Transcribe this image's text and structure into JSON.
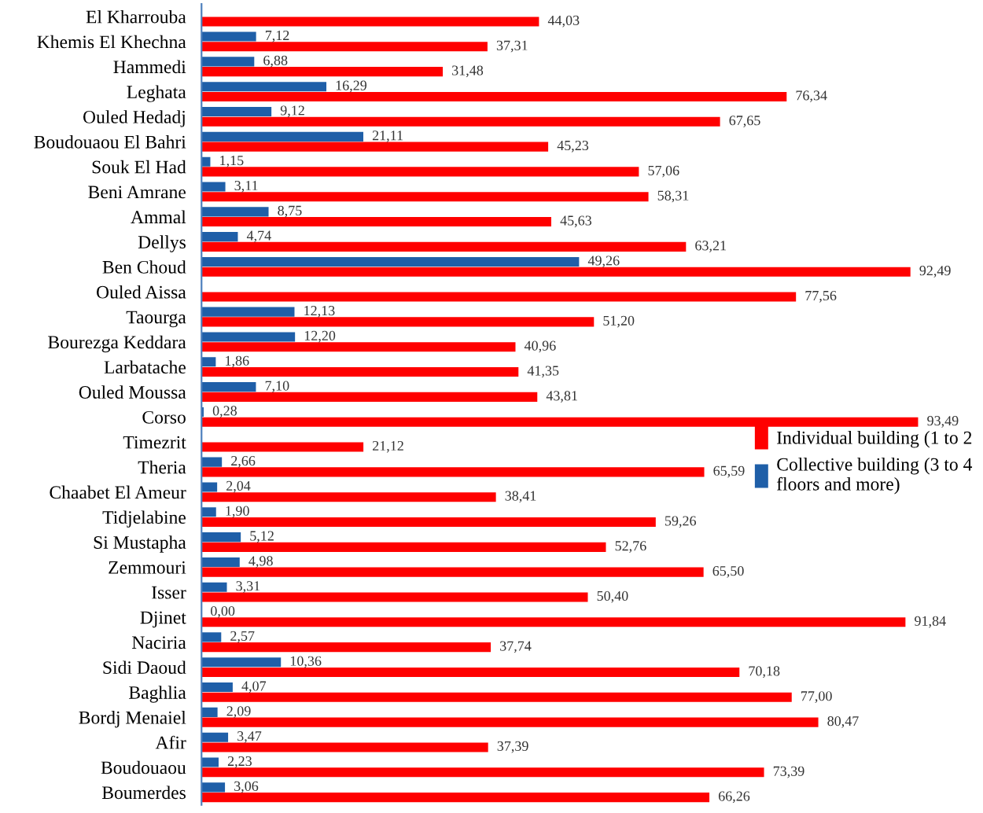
{
  "chart_data": {
    "type": "bar",
    "orientation": "horizontal",
    "categories": [
      "El Kharrouba",
      "Khemis El Khechna",
      "Hammedi",
      "Leghata",
      "Ouled Hedadj",
      "Boudouaou El Bahri",
      "Souk El Had",
      "Beni Amrane",
      "Ammal",
      "Dellys",
      "Ben Choud",
      "Ouled Aissa",
      "Taourga",
      "Bourezga Keddara",
      "Larbatache",
      "Ouled Moussa",
      "Corso",
      "Timezrit",
      "Theria",
      "Chaabet El Ameur",
      "Tidjelabine",
      "Si Mustapha",
      "Zemmouri",
      "Isser",
      "Djinet",
      "Naciria",
      "Sidi Daoud",
      "Baghlia",
      "Bordj Menaiel",
      "Afir",
      "Boudouaou",
      "Boumerdes"
    ],
    "series": [
      {
        "name": "Individual building (1 to 2",
        "color": "#ff0000",
        "values": [
          44.03,
          37.31,
          31.48,
          76.34,
          67.65,
          45.23,
          57.06,
          58.31,
          45.63,
          63.21,
          92.49,
          77.56,
          51.2,
          40.96,
          41.35,
          43.81,
          93.49,
          21.12,
          65.59,
          38.41,
          59.26,
          52.76,
          65.5,
          50.4,
          91.84,
          37.74,
          70.18,
          77.0,
          80.47,
          37.39,
          73.39,
          66.26
        ],
        "value_labels": [
          "44,03",
          "37,31",
          "31,48",
          "76,34",
          "67,65",
          "45,23",
          "57,06",
          "58,31",
          "45,63",
          "63,21",
          "92,49",
          "77,56",
          "51,20",
          "40,96",
          "41,35",
          "43,81",
          "93,49",
          "21,12",
          "65,59",
          "38,41",
          "59,26",
          "52,76",
          "65,50",
          "50,40",
          "91,84",
          "37,74",
          "70,18",
          "77,00",
          "80,47",
          "37,39",
          "73,39",
          "66,26"
        ]
      },
      {
        "name": "Collective building (3 to 4 floors and more)",
        "color": "#1f5fa8",
        "values": [
          null,
          7.12,
          6.88,
          16.29,
          9.12,
          21.11,
          1.15,
          3.11,
          8.75,
          4.74,
          49.26,
          null,
          12.13,
          12.2,
          1.86,
          7.1,
          0.28,
          null,
          2.66,
          2.04,
          1.9,
          5.12,
          4.98,
          3.31,
          0.0,
          2.57,
          10.36,
          4.07,
          2.09,
          3.47,
          2.23,
          3.06
        ],
        "value_labels": [
          null,
          "7,12",
          "6,88",
          "16,29",
          "9,12",
          "21,11",
          "1,15",
          "3,11",
          "8,75",
          "4,74",
          "49,26",
          null,
          "12,13",
          "12,20",
          "1,86",
          "7,10",
          "0,28",
          null,
          "2,66",
          "2,04",
          "1,90",
          "5,12",
          "4,98",
          "3,31",
          "0,00",
          "2,57",
          "10,36",
          "4,07",
          "2,09",
          "3,47",
          "2,23",
          "3,06"
        ]
      }
    ],
    "tick_labels": "y",
    "legend": "right",
    "grid": false
  }
}
